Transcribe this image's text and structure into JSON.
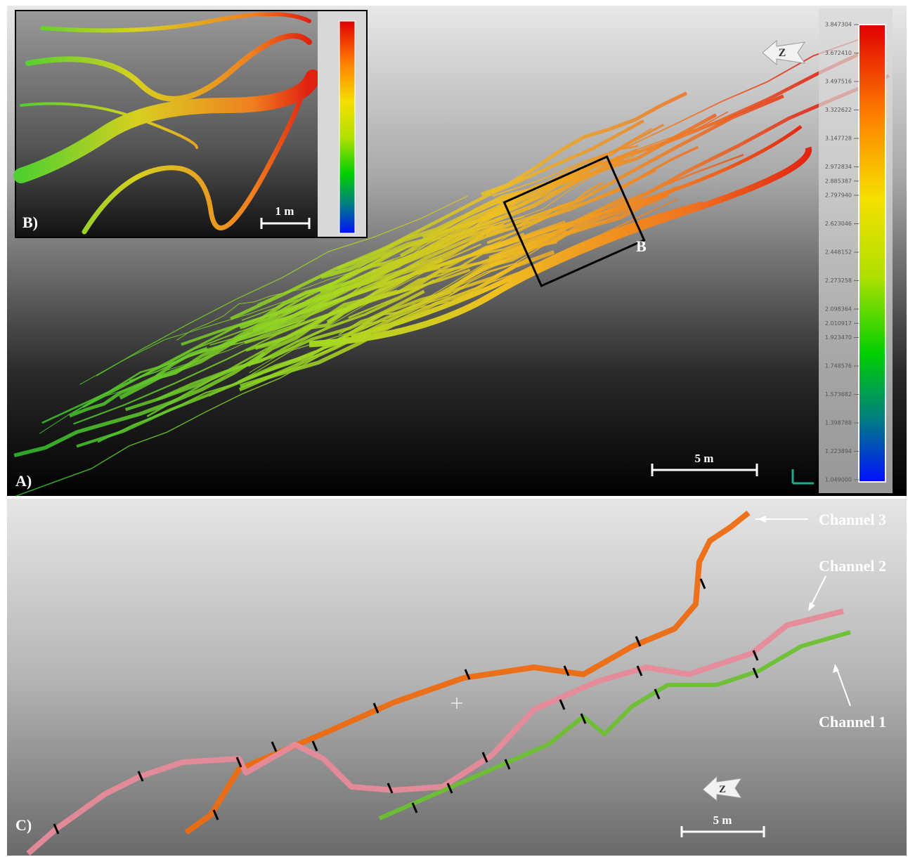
{
  "panel_a": {
    "label": "A)",
    "scale_bar": "5 m",
    "north": "Z",
    "box_label": "B",
    "colorbar": {
      "ticks": [
        {
          "value": 1.049,
          "label": "1.049000"
        },
        {
          "value": 1.223894,
          "label": "1.223894"
        },
        {
          "value": 1.398788,
          "label": "1.398788"
        },
        {
          "value": 1.573682,
          "label": "1.573682"
        },
        {
          "value": 1.748576,
          "label": "1.748576"
        },
        {
          "value": 1.92347,
          "label": "1.923470"
        },
        {
          "value": 2.010917,
          "label": "2.010917"
        },
        {
          "value": 2.098364,
          "label": "2.098364"
        },
        {
          "value": 2.273258,
          "label": "2.273258"
        },
        {
          "value": 2.448152,
          "label": "2.448152"
        },
        {
          "value": 2.623046,
          "label": "2.623046"
        },
        {
          "value": 2.79794,
          "label": "2.797940"
        },
        {
          "value": 2.885387,
          "label": "2.885387"
        },
        {
          "value": 2.972834,
          "label": "2.972834"
        },
        {
          "value": 3.147728,
          "label": "3.147728"
        },
        {
          "value": 3.322622,
          "label": "3.322622"
        },
        {
          "value": 3.497516,
          "label": "3.497516"
        },
        {
          "value": 3.67241,
          "label": "3.672410"
        },
        {
          "value": 3.847304,
          "label": "3.847304"
        }
      ]
    }
  },
  "panel_b": {
    "label": "B)",
    "scale_bar": "1 m"
  },
  "panel_c": {
    "label": "C)",
    "scale_bar": "5 m",
    "north": "Z",
    "channels": [
      "Channel 3",
      "Channel 2",
      "Channel 1"
    ]
  }
}
